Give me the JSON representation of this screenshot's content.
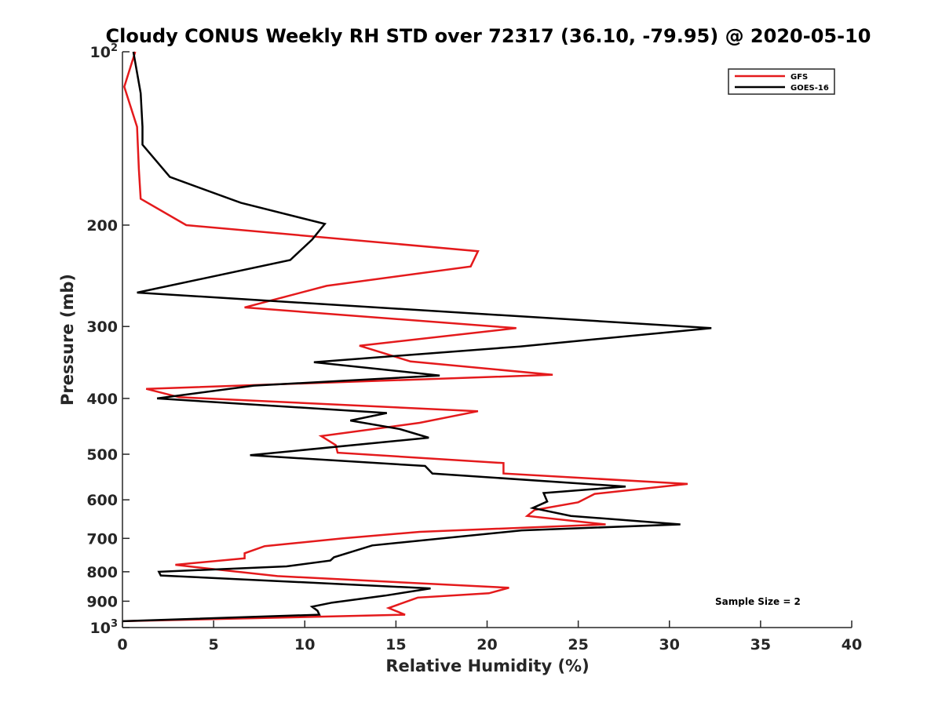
{
  "chart_data": {
    "type": "line",
    "title": "Cloudy CONUS Weekly RH STD over 72317 (36.10, -79.95) @ 2020-05-10",
    "xlabel": "Relative Humidity (%)",
    "ylabel": "Pressure (mb)",
    "xlim": [
      0,
      40
    ],
    "ylim": [
      100,
      1000
    ],
    "y_scale": "log",
    "y_reversed": true,
    "x_ticks": [
      "0",
      "5",
      "10",
      "15",
      "20",
      "25",
      "30",
      "35",
      "40"
    ],
    "y_ticks": [
      {
        "value": 100,
        "label": "10",
        "sup": "2"
      },
      {
        "value": 200,
        "label": "200"
      },
      {
        "value": 300,
        "label": "300"
      },
      {
        "value": 400,
        "label": "400"
      },
      {
        "value": 500,
        "label": "500"
      },
      {
        "value": 600,
        "label": "600"
      },
      {
        "value": 700,
        "label": "700"
      },
      {
        "value": 800,
        "label": "800"
      },
      {
        "value": 900,
        "label": "900"
      },
      {
        "value": 1000,
        "label": "10",
        "sup": "3"
      }
    ],
    "grid": false,
    "legend_position": "top-right",
    "annotation": "Sample Size = 2",
    "series": [
      {
        "name": "GFS",
        "color": "#e41a1c",
        "points": [
          [
            0.7,
            100
          ],
          [
            0.1,
            115
          ],
          [
            0.8,
            135
          ],
          [
            0.9,
            160
          ],
          [
            1.0,
            180
          ],
          [
            3.5,
            200
          ],
          [
            19.5,
            222
          ],
          [
            19.1,
            236
          ],
          [
            11.2,
            255
          ],
          [
            6.7,
            278
          ],
          [
            21.6,
            302
          ],
          [
            13.0,
            324
          ],
          [
            15.8,
            345
          ],
          [
            23.6,
            364
          ],
          [
            1.3,
            385
          ],
          [
            3.1,
            398
          ],
          [
            19.5,
            421
          ],
          [
            16.3,
            441
          ],
          [
            10.9,
            465
          ],
          [
            11.7,
            482
          ],
          [
            11.8,
            497
          ],
          [
            20.9,
            518
          ],
          [
            20.9,
            540
          ],
          [
            31.0,
            563
          ],
          [
            25.9,
            586
          ],
          [
            25.0,
            606
          ],
          [
            22.6,
            625
          ],
          [
            22.2,
            640
          ],
          [
            26.5,
            662
          ],
          [
            16.3,
            682
          ],
          [
            12.1,
            700
          ],
          [
            7.8,
            722
          ],
          [
            6.7,
            743
          ],
          [
            6.7,
            758
          ],
          [
            2.9,
            778
          ],
          [
            4.6,
            789
          ],
          [
            8.5,
            814
          ],
          [
            21.2,
            853
          ],
          [
            20.1,
            872
          ],
          [
            16.2,
            887
          ],
          [
            14.6,
            925
          ],
          [
            15.5,
            950
          ],
          [
            0.0,
            975
          ]
        ]
      },
      {
        "name": "GOES-16",
        "color": "#000000",
        "points": [
          [
            0.6,
            100
          ],
          [
            1.0,
            118
          ],
          [
            1.1,
            135
          ],
          [
            1.1,
            145
          ],
          [
            2.6,
            165
          ],
          [
            6.5,
            183
          ],
          [
            11.1,
            199
          ],
          [
            10.4,
            212
          ],
          [
            9.2,
            230
          ],
          [
            0.8,
            262
          ],
          [
            32.3,
            302
          ],
          [
            21.8,
            325
          ],
          [
            10.5,
            346
          ],
          [
            17.4,
            365
          ],
          [
            7.2,
            380
          ],
          [
            1.9,
            400
          ],
          [
            14.5,
            424
          ],
          [
            12.5,
            437
          ],
          [
            15.2,
            452
          ],
          [
            16.8,
            468
          ],
          [
            7.0,
            502
          ],
          [
            16.6,
            524
          ],
          [
            17.0,
            540
          ],
          [
            27.6,
            569
          ],
          [
            23.1,
            584
          ],
          [
            23.3,
            604
          ],
          [
            22.5,
            620
          ],
          [
            24.6,
            640
          ],
          [
            30.6,
            662
          ],
          [
            21.9,
            678
          ],
          [
            13.7,
            720
          ],
          [
            11.6,
            755
          ],
          [
            11.4,
            765
          ],
          [
            9.0,
            783
          ],
          [
            2.0,
            800
          ],
          [
            2.1,
            812
          ],
          [
            16.9,
            855
          ],
          [
            14.4,
            880
          ],
          [
            11.5,
            905
          ],
          [
            10.4,
            920
          ],
          [
            10.7,
            935
          ],
          [
            10.8,
            950
          ],
          [
            0.0,
            975
          ]
        ]
      }
    ]
  }
}
